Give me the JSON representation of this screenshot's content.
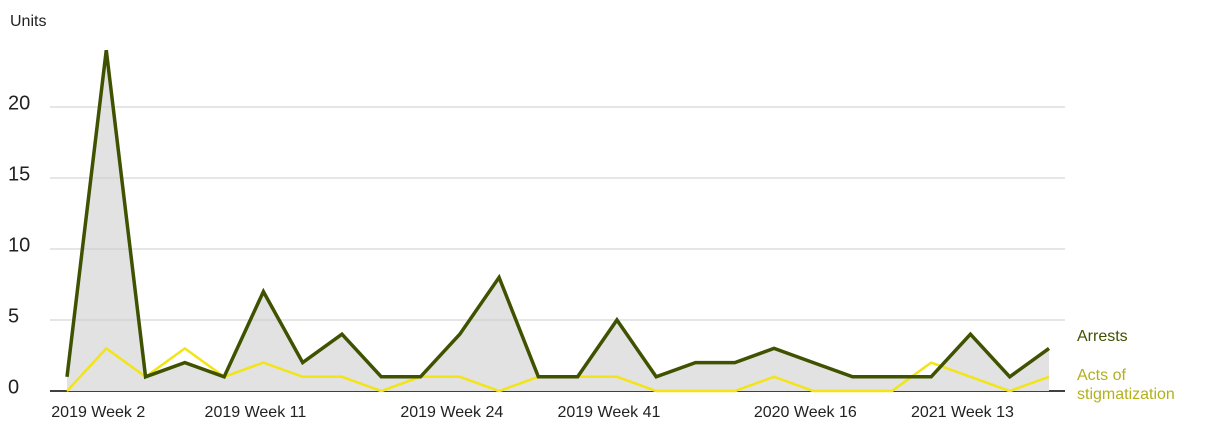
{
  "chart_data": {
    "type": "line",
    "y_label": "Units",
    "categories": [
      null,
      "2019 Week 2",
      null,
      null,
      null,
      "2019 Week 11",
      null,
      null,
      null,
      null,
      "2019 Week 24",
      null,
      null,
      null,
      "2019 Week 41",
      null,
      null,
      null,
      null,
      "2020 Week 16",
      null,
      null,
      null,
      "2021 Week 13",
      null,
      null
    ],
    "series": [
      {
        "name": "Arrests",
        "color": "#3f5200",
        "values": [
          1,
          24,
          1,
          2,
          1,
          7,
          2,
          4,
          1,
          1,
          4,
          8,
          1,
          1,
          5,
          1,
          2,
          2,
          3,
          2,
          1,
          1,
          1,
          4,
          1,
          3
        ]
      },
      {
        "name": "Acts of stigmatization",
        "color": "#f2e416",
        "values": [
          0,
          3,
          1,
          3,
          1,
          2,
          1,
          1,
          0,
          1,
          1,
          0,
          1,
          1,
          1,
          0,
          0,
          0,
          1,
          0,
          0,
          0,
          2,
          1,
          0,
          1
        ]
      }
    ],
    "ylim": [
      0,
      25
    ],
    "yticks": [
      0,
      5,
      10,
      15,
      20
    ],
    "grid": true
  }
}
